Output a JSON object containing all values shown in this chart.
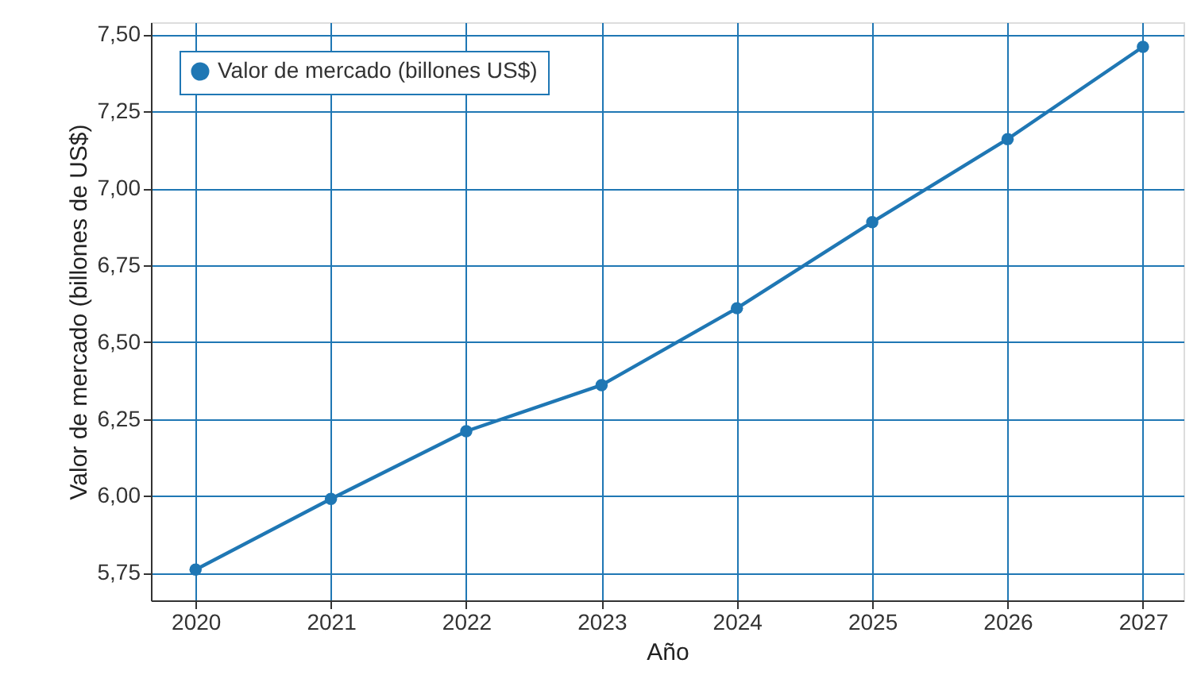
{
  "chart_data": {
    "type": "line",
    "xlabel": "Año",
    "ylabel": "Valor de mercado (billones de US$)",
    "x": [
      2020,
      2021,
      2022,
      2023,
      2024,
      2025,
      2026,
      2027
    ],
    "series": [
      {
        "name": "Valor de mercado (billones US$)",
        "color": "#1f77b4",
        "values": [
          5.76,
          5.99,
          6.21,
          6.36,
          6.61,
          6.89,
          7.16,
          7.46
        ]
      }
    ],
    "xlim": [
      2019.67,
      2027.3
    ],
    "xticks": [
      2020,
      2021,
      2022,
      2023,
      2024,
      2025,
      2026,
      2027
    ],
    "ylim": [
      5.66,
      7.54
    ],
    "yticks": [
      {
        "value": 5.75,
        "label": "5,75"
      },
      {
        "value": 6.0,
        "label": "6,00"
      },
      {
        "value": 6.25,
        "label": "6,25"
      },
      {
        "value": 6.5,
        "label": "6,50"
      },
      {
        "value": 6.75,
        "label": "6,75"
      },
      {
        "value": 7.0,
        "label": "7,00"
      },
      {
        "value": 7.25,
        "label": "7,25"
      },
      {
        "value": 7.5,
        "label": "7,50"
      }
    ],
    "grid": true,
    "legend": "top left",
    "marker": "circle",
    "line_style": "solid"
  }
}
